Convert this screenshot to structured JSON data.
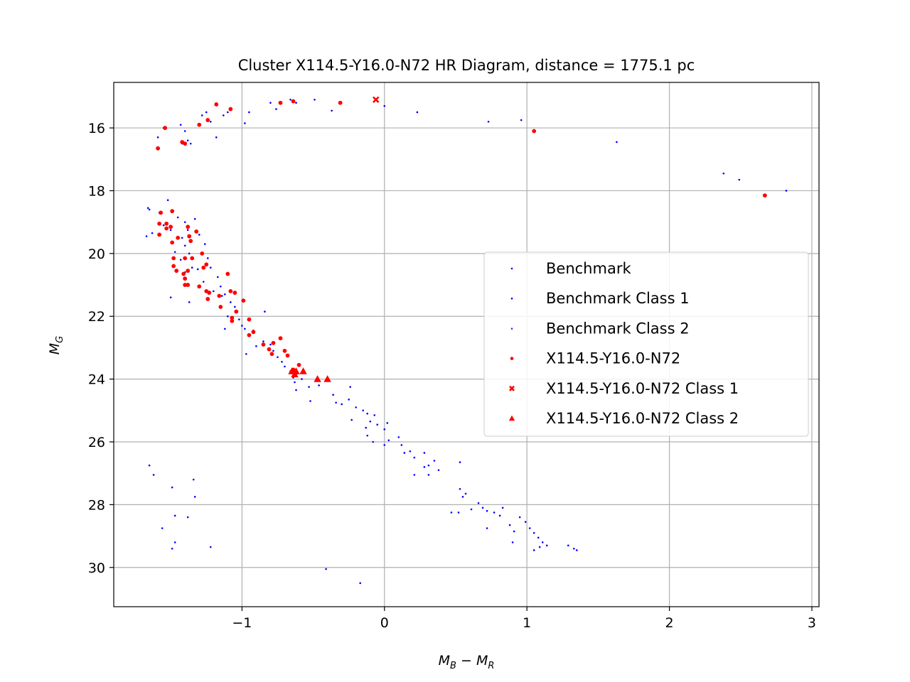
{
  "chart_data": {
    "type": "scatter",
    "title": "Cluster X114.5-Y16.0-N72 HR Diagram, distance = 1775.1 pc",
    "xlabel": {
      "main": "M",
      "sub1": "B",
      "minus": " − ",
      "main2": "M",
      "sub2": "R"
    },
    "ylabel": {
      "main": "M",
      "sub": "G"
    },
    "xlim": [
      -1.9,
      3.05
    ],
    "ylim": [
      31.25,
      14.55
    ],
    "y_inverted": true,
    "grid": true,
    "legend_position": "center-right",
    "x_ticks": [
      {
        "value": -1,
        "label": "−1"
      },
      {
        "value": 0,
        "label": "0"
      },
      {
        "value": 1,
        "label": "1"
      },
      {
        "value": 2,
        "label": "2"
      },
      {
        "value": 3,
        "label": "3"
      }
    ],
    "y_ticks": [
      {
        "value": 16,
        "label": "16"
      },
      {
        "value": 18,
        "label": "18"
      },
      {
        "value": 20,
        "label": "20"
      },
      {
        "value": 22,
        "label": "22"
      },
      {
        "value": 24,
        "label": "24"
      },
      {
        "value": 26,
        "label": "26"
      },
      {
        "value": 28,
        "label": "28"
      },
      {
        "value": 30,
        "label": "30"
      }
    ],
    "series": [
      {
        "name": "Benchmark",
        "color": "#0000ff",
        "marker": "point",
        "points": [
          [
            -1.59,
            16.3
          ],
          [
            -1.55,
            16.0
          ],
          [
            -1.43,
            15.9
          ],
          [
            -1.4,
            16.1
          ],
          [
            -1.42,
            16.5
          ],
          [
            -1.38,
            16.4
          ],
          [
            -1.36,
            16.5
          ],
          [
            -1.28,
            15.6
          ],
          [
            -1.25,
            15.5
          ],
          [
            -1.22,
            15.8
          ],
          [
            -1.18,
            16.3
          ],
          [
            -1.13,
            15.6
          ],
          [
            -1.1,
            15.5
          ],
          [
            -0.98,
            15.85
          ],
          [
            -0.95,
            15.5
          ],
          [
            -0.8,
            15.2
          ],
          [
            -0.76,
            15.4
          ],
          [
            -0.66,
            15.1
          ],
          [
            -0.62,
            15.2
          ],
          [
            -0.49,
            15.1
          ],
          [
            -0.37,
            15.45
          ],
          [
            0.0,
            15.3
          ],
          [
            0.23,
            15.5
          ],
          [
            0.73,
            15.8
          ],
          [
            0.96,
            15.75
          ],
          [
            1.63,
            16.45
          ],
          [
            2.38,
            17.45
          ],
          [
            2.49,
            17.65
          ],
          [
            2.82,
            18.0
          ],
          [
            -1.66,
            18.55
          ],
          [
            -1.65,
            18.6
          ],
          [
            -1.58,
            18.7
          ],
          [
            -1.52,
            18.3
          ],
          [
            -1.55,
            19.1
          ],
          [
            -1.5,
            19.25
          ],
          [
            -1.63,
            19.35
          ],
          [
            -1.67,
            19.45
          ],
          [
            -1.45,
            18.85
          ],
          [
            -1.4,
            19.0
          ],
          [
            -1.38,
            19.25
          ],
          [
            -1.33,
            18.9
          ],
          [
            -1.42,
            19.5
          ],
          [
            -1.4,
            19.75
          ],
          [
            -1.47,
            19.95
          ],
          [
            -1.37,
            20.0
          ],
          [
            -1.43,
            20.2
          ],
          [
            -1.35,
            20.45
          ],
          [
            -1.4,
            20.6
          ],
          [
            -1.31,
            20.5
          ],
          [
            -1.27,
            20.9
          ],
          [
            -1.3,
            19.4
          ],
          [
            -1.26,
            19.7
          ],
          [
            -1.24,
            20.15
          ],
          [
            -1.22,
            20.45
          ],
          [
            -1.17,
            20.75
          ],
          [
            -1.15,
            21.05
          ],
          [
            -1.2,
            21.2
          ],
          [
            -1.12,
            21.3
          ],
          [
            -1.5,
            21.4
          ],
          [
            -1.37,
            21.55
          ],
          [
            -1.14,
            21.35
          ],
          [
            -1.08,
            21.55
          ],
          [
            -1.05,
            21.7
          ],
          [
            -1.1,
            22.0
          ],
          [
            -1.02,
            22.1
          ],
          [
            -1.0,
            22.3
          ],
          [
            -0.98,
            22.4
          ],
          [
            -1.12,
            22.4
          ],
          [
            -0.92,
            22.45
          ],
          [
            -0.85,
            22.8
          ],
          [
            -0.8,
            22.9
          ],
          [
            -0.97,
            23.2
          ],
          [
            -0.9,
            22.95
          ],
          [
            -0.84,
            21.85
          ],
          [
            -0.78,
            23.1
          ],
          [
            -0.75,
            23.3
          ],
          [
            -0.72,
            23.45
          ],
          [
            -0.7,
            23.6
          ],
          [
            -0.66,
            23.75
          ],
          [
            -0.64,
            23.95
          ],
          [
            -0.63,
            24.1
          ],
          [
            -0.62,
            24.35
          ],
          [
            -0.58,
            24.0
          ],
          [
            -0.53,
            24.25
          ],
          [
            -0.52,
            24.7
          ],
          [
            -0.46,
            24.2
          ],
          [
            -0.36,
            24.5
          ],
          [
            -0.34,
            24.75
          ],
          [
            -0.3,
            24.8
          ],
          [
            -0.24,
            24.25
          ],
          [
            -0.25,
            24.65
          ],
          [
            -0.2,
            24.9
          ],
          [
            -0.15,
            25.0
          ],
          [
            -0.12,
            25.1
          ],
          [
            -0.1,
            25.35
          ],
          [
            -0.13,
            25.55
          ],
          [
            -0.23,
            25.3
          ],
          [
            -0.07,
            25.15
          ],
          [
            -0.05,
            25.45
          ],
          [
            0.0,
            25.6
          ],
          [
            0.02,
            25.4
          ],
          [
            -0.12,
            25.8
          ],
          [
            -0.08,
            26.0
          ],
          [
            0.0,
            26.1
          ],
          [
            0.03,
            25.95
          ],
          [
            0.1,
            25.85
          ],
          [
            0.12,
            26.1
          ],
          [
            0.14,
            26.35
          ],
          [
            0.18,
            26.3
          ],
          [
            0.21,
            26.5
          ],
          [
            0.28,
            26.35
          ],
          [
            0.28,
            26.8
          ],
          [
            0.35,
            26.6
          ],
          [
            0.38,
            26.9
          ],
          [
            0.21,
            27.05
          ],
          [
            0.31,
            27.05
          ],
          [
            0.31,
            26.75
          ],
          [
            0.53,
            26.65
          ],
          [
            0.53,
            27.5
          ],
          [
            0.55,
            27.75
          ],
          [
            0.57,
            27.65
          ],
          [
            0.66,
            27.95
          ],
          [
            0.69,
            28.1
          ],
          [
            0.72,
            28.2
          ],
          [
            0.77,
            28.25
          ],
          [
            0.81,
            28.35
          ],
          [
            0.83,
            28.1
          ],
          [
            0.88,
            28.65
          ],
          [
            0.91,
            28.85
          ],
          [
            0.95,
            28.4
          ],
          [
            0.99,
            28.55
          ],
          [
            1.02,
            28.75
          ],
          [
            1.05,
            28.9
          ],
          [
            1.08,
            29.05
          ],
          [
            1.11,
            29.2
          ],
          [
            1.14,
            29.3
          ],
          [
            1.05,
            29.45
          ],
          [
            1.09,
            29.35
          ],
          [
            1.29,
            29.3
          ],
          [
            1.33,
            29.4
          ],
          [
            1.35,
            29.45
          ],
          [
            0.9,
            29.2
          ],
          [
            0.72,
            28.75
          ],
          [
            0.47,
            28.25
          ],
          [
            0.52,
            28.25
          ],
          [
            0.61,
            28.15
          ],
          [
            -1.65,
            26.75
          ],
          [
            -1.62,
            27.05
          ],
          [
            -1.49,
            27.45
          ],
          [
            -1.34,
            27.2
          ],
          [
            -1.33,
            27.75
          ],
          [
            -1.47,
            28.35
          ],
          [
            -1.38,
            28.4
          ],
          [
            -1.56,
            28.75
          ],
          [
            -1.47,
            29.2
          ],
          [
            -1.49,
            29.4
          ],
          [
            -1.22,
            29.35
          ],
          [
            -0.41,
            30.05
          ],
          [
            -0.17,
            30.5
          ]
        ]
      },
      {
        "name": "Benchmark Class 1",
        "color": "#0000ff",
        "marker": "point",
        "points": []
      },
      {
        "name": "Benchmark Class 2",
        "color": "#0000ff",
        "marker": "triangle",
        "points": []
      },
      {
        "name": "X114.5-Y16.0-N72",
        "color": "#ff0000",
        "marker": "circle",
        "points": [
          [
            -1.59,
            16.65
          ],
          [
            -1.54,
            16.0
          ],
          [
            -1.42,
            16.45
          ],
          [
            -1.4,
            16.5
          ],
          [
            -1.3,
            15.9
          ],
          [
            -1.24,
            15.75
          ],
          [
            -1.18,
            15.25
          ],
          [
            -1.08,
            15.4
          ],
          [
            -0.73,
            15.2
          ],
          [
            -0.64,
            15.15
          ],
          [
            -0.31,
            15.2
          ],
          [
            1.05,
            16.1
          ],
          [
            2.67,
            18.15
          ],
          [
            -1.57,
            18.7
          ],
          [
            -1.49,
            18.65
          ],
          [
            -1.58,
            19.05
          ],
          [
            -1.53,
            19.05
          ],
          [
            -1.5,
            19.15
          ],
          [
            -1.53,
            19.2
          ],
          [
            -1.58,
            19.4
          ],
          [
            -1.49,
            19.65
          ],
          [
            -1.38,
            19.15
          ],
          [
            -1.32,
            19.3
          ],
          [
            -1.37,
            19.45
          ],
          [
            -1.36,
            19.6
          ],
          [
            -1.45,
            19.5
          ],
          [
            -1.48,
            20.15
          ],
          [
            -1.48,
            20.4
          ],
          [
            -1.46,
            20.55
          ],
          [
            -1.4,
            20.15
          ],
          [
            -1.35,
            20.15
          ],
          [
            -1.41,
            20.65
          ],
          [
            -1.4,
            20.8
          ],
          [
            -1.38,
            20.55
          ],
          [
            -1.38,
            21.0
          ],
          [
            -1.4,
            21.0
          ],
          [
            -1.28,
            20.0
          ],
          [
            -1.25,
            20.35
          ],
          [
            -1.27,
            20.45
          ],
          [
            -1.3,
            21.05
          ],
          [
            -1.25,
            21.2
          ],
          [
            -1.23,
            21.25
          ],
          [
            -1.24,
            21.45
          ],
          [
            -1.16,
            21.35
          ],
          [
            -1.1,
            20.65
          ],
          [
            -1.08,
            21.2
          ],
          [
            -1.15,
            21.7
          ],
          [
            -1.05,
            21.25
          ],
          [
            -0.99,
            21.5
          ],
          [
            -1.07,
            22.05
          ],
          [
            -1.07,
            22.15
          ],
          [
            -1.04,
            21.85
          ],
          [
            -0.95,
            22.1
          ],
          [
            -0.95,
            22.6
          ],
          [
            -0.92,
            22.5
          ],
          [
            -0.85,
            22.9
          ],
          [
            -0.81,
            23.05
          ],
          [
            -0.79,
            23.2
          ],
          [
            -0.78,
            22.85
          ],
          [
            -0.73,
            22.7
          ],
          [
            -0.7,
            23.1
          ],
          [
            -0.68,
            23.25
          ],
          [
            -0.64,
            23.7
          ],
          [
            -0.62,
            23.8
          ],
          [
            -0.6,
            23.55
          ]
        ]
      },
      {
        "name": "X114.5-Y16.0-N72 Class 1",
        "color": "#ff0000",
        "marker": "x",
        "points": [
          [
            -0.06,
            15.1
          ]
        ]
      },
      {
        "name": "X114.5-Y16.0-N72 Class 2",
        "color": "#ff0000",
        "marker": "triangle",
        "points": [
          [
            -0.65,
            23.75
          ],
          [
            -0.63,
            23.85
          ],
          [
            -0.62,
            23.75
          ],
          [
            -0.57,
            23.75
          ],
          [
            -0.47,
            24.0
          ],
          [
            -0.4,
            24.0
          ]
        ]
      }
    ]
  }
}
